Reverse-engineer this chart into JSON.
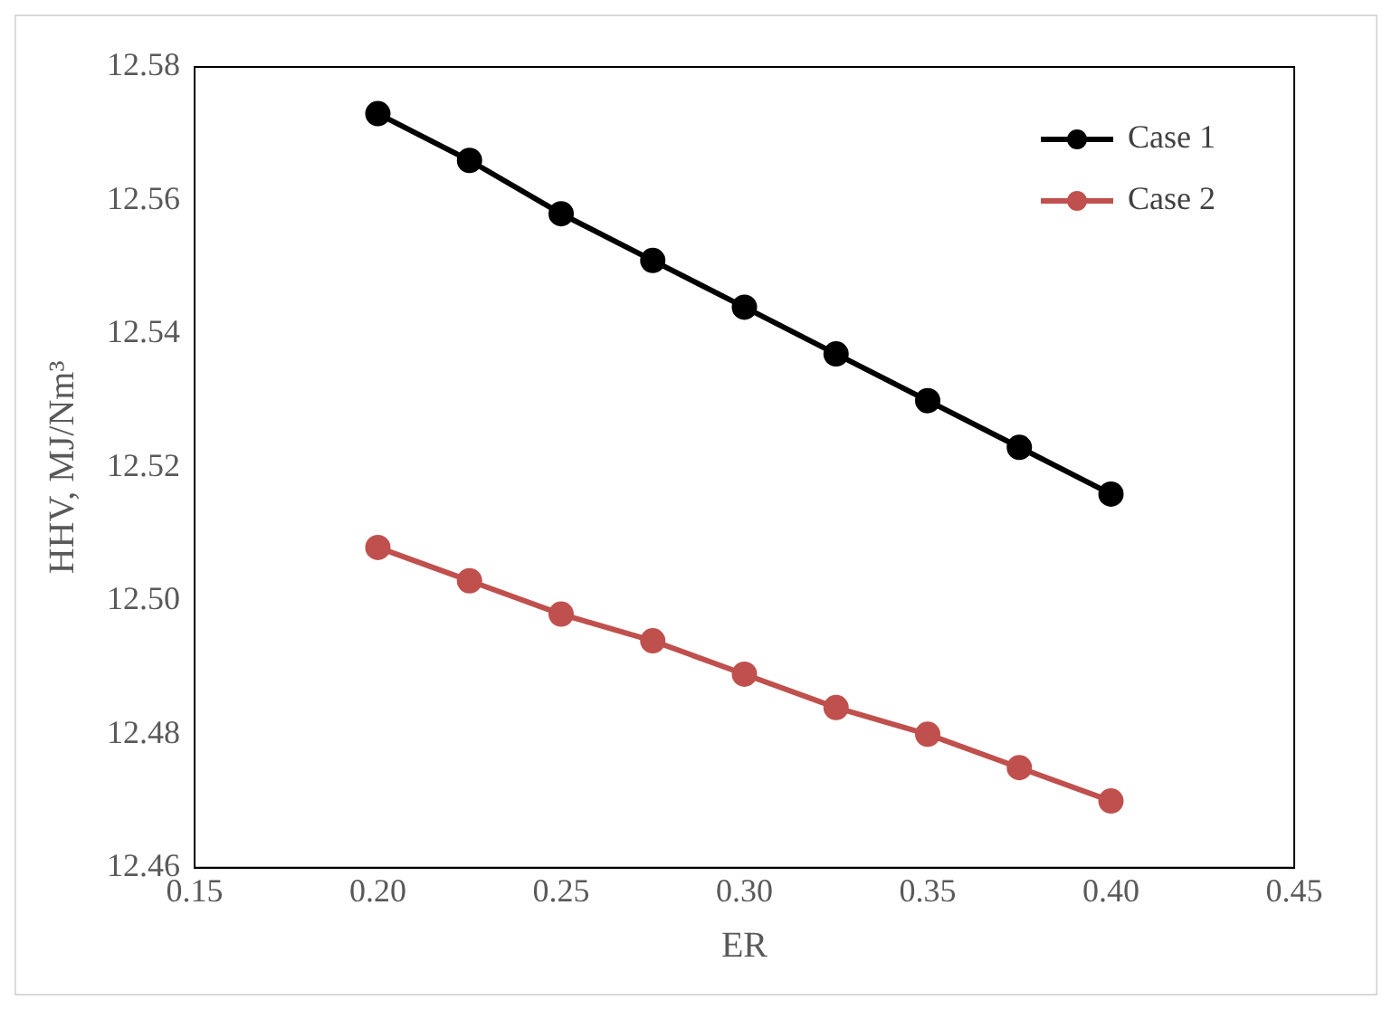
{
  "chart_data": {
    "type": "line",
    "xlabel": "ER",
    "ylabel": "HHV, MJ/Nm³",
    "x": [
      0.2,
      0.225,
      0.25,
      0.275,
      0.3,
      0.325,
      0.35,
      0.375,
      0.4
    ],
    "series": [
      {
        "name": "Case 1",
        "color": "#000000",
        "values": [
          12.573,
          12.566,
          12.558,
          12.551,
          12.544,
          12.537,
          12.53,
          12.523,
          12.516
        ]
      },
      {
        "name": "Case 2",
        "color": "#c0504d",
        "values": [
          12.508,
          12.503,
          12.498,
          12.494,
          12.489,
          12.484,
          12.48,
          12.475,
          12.47
        ]
      }
    ],
    "xlim": [
      0.15,
      0.45
    ],
    "xticks": [
      0.15,
      {
        "value": 0.2,
        "label": "0.20"
      },
      0.25,
      {
        "value": 0.3,
        "label": "0.30"
      },
      0.35,
      {
        "value": 0.4,
        "label": "0.40"
      },
      0.45
    ],
    "ylim": [
      12.46,
      12.58
    ],
    "yticks": [
      12.46,
      12.48,
      {
        "value": 12.5,
        "label": "12.50"
      },
      12.52,
      12.54,
      12.56,
      12.58
    ],
    "grid": false,
    "legend": "top right",
    "marker": "circle",
    "line_style": "solid"
  }
}
